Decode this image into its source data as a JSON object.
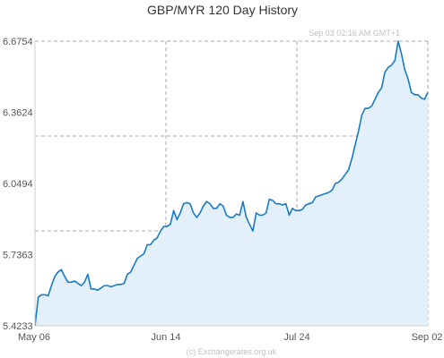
{
  "chart_data": {
    "type": "area",
    "title": "GBP/MYR  120 Day History",
    "timestamp": "Sep 03  02:16 AM GMT+1",
    "credit": "(c) Exchangerates.org.uk",
    "x_tick_labels": [
      "May 06",
      "Jun 14",
      "Jul 24",
      "Sep 02"
    ],
    "y_tick_labels": [
      "6.6754",
      "6.3624",
      "6.0494",
      "5.7363",
      "5.4233"
    ],
    "ylim": [
      5.4233,
      6.6754
    ],
    "xlim": [
      0,
      119
    ],
    "grid": true,
    "colors": {
      "line": "#1a7bc4",
      "fill": "#e3f0fa",
      "grid": "#aaaaaa",
      "axis": "#cccccc"
    },
    "series": [
      {
        "values": [
          5.4233,
          5.55,
          5.56,
          5.56,
          5.555,
          5.6,
          5.64,
          5.66,
          5.67,
          5.64,
          5.615,
          5.615,
          5.62,
          5.61,
          5.6,
          5.615,
          5.65,
          5.585,
          5.585,
          5.58,
          5.59,
          5.6,
          5.6,
          5.595,
          5.6,
          5.605,
          5.605,
          5.61,
          5.65,
          5.66,
          5.69,
          5.72,
          5.73,
          5.74,
          5.78,
          5.78,
          5.8,
          5.81,
          5.84,
          5.86,
          5.86,
          5.87,
          5.93,
          5.89,
          5.92,
          5.96,
          5.965,
          5.96,
          5.92,
          5.9,
          5.92,
          5.95,
          5.97,
          5.96,
          5.94,
          5.94,
          5.96,
          5.95,
          5.91,
          5.9,
          5.9,
          5.915,
          5.91,
          5.97,
          5.9,
          5.87,
          5.84,
          5.92,
          5.91,
          5.91,
          5.92,
          5.98,
          5.975,
          5.96,
          5.96,
          5.955,
          5.96,
          5.91,
          5.94,
          5.93,
          5.93,
          5.935,
          5.955,
          5.96,
          5.965,
          5.99,
          5.995,
          6.0,
          6.005,
          6.01,
          6.02,
          6.05,
          6.055,
          6.07,
          6.09,
          6.11,
          6.16,
          6.22,
          6.28,
          6.35,
          6.38,
          6.38,
          6.39,
          6.42,
          6.45,
          6.47,
          6.54,
          6.56,
          6.57,
          6.59,
          6.6754,
          6.62,
          6.55,
          6.51,
          6.45,
          6.44,
          6.44,
          6.425,
          6.42,
          6.45
        ]
      }
    ]
  }
}
